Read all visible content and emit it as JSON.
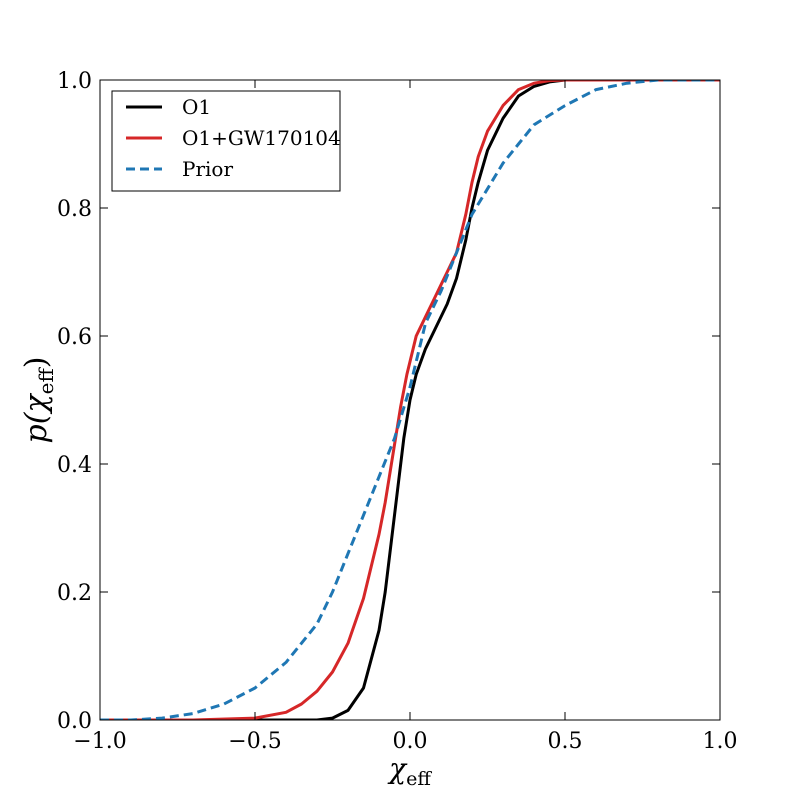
{
  "chart_data": {
    "type": "line",
    "xlabel_symbol": "χ",
    "xlabel_sub": "eff",
    "ylabel_prefix": "p(",
    "ylabel_symbol": "χ",
    "ylabel_sub": "eff",
    "ylabel_suffix": ")",
    "xlim": [
      -1.0,
      1.0
    ],
    "ylim": [
      0.0,
      1.0
    ],
    "xticks": [
      -1.0,
      -0.5,
      0.0,
      0.5,
      1.0
    ],
    "xtick_labels": [
      "−1.0",
      "−0.5",
      "0.0",
      "0.5",
      "1.0"
    ],
    "yticks": [
      0.0,
      0.2,
      0.4,
      0.6,
      0.8,
      1.0
    ],
    "ytick_labels": [
      "0.0",
      "0.2",
      "0.4",
      "0.6",
      "0.8",
      "1.0"
    ],
    "grid": false,
    "legend_position": "top-left",
    "series": [
      {
        "name": "O1",
        "color": "#000000",
        "dash": "solid",
        "x": [
          -1.0,
          -0.3,
          -0.25,
          -0.2,
          -0.15,
          -0.1,
          -0.08,
          -0.06,
          -0.04,
          -0.02,
          0.0,
          0.02,
          0.05,
          0.08,
          0.12,
          0.15,
          0.18,
          0.2,
          0.22,
          0.25,
          0.3,
          0.35,
          0.4,
          0.45,
          0.5,
          0.55,
          0.6,
          1.0
        ],
        "y": [
          0.0,
          0.0,
          0.003,
          0.015,
          0.05,
          0.14,
          0.2,
          0.28,
          0.36,
          0.44,
          0.5,
          0.54,
          0.58,
          0.61,
          0.65,
          0.69,
          0.75,
          0.8,
          0.84,
          0.89,
          0.94,
          0.975,
          0.99,
          0.997,
          1.0,
          1.0,
          1.0,
          1.0
        ]
      },
      {
        "name": "O1+GW170104",
        "color": "#d62728",
        "dash": "solid",
        "x": [
          -1.0,
          -0.7,
          -0.5,
          -0.4,
          -0.35,
          -0.3,
          -0.25,
          -0.2,
          -0.15,
          -0.1,
          -0.08,
          -0.05,
          -0.03,
          -0.01,
          0.0,
          0.02,
          0.05,
          0.08,
          0.1,
          0.12,
          0.15,
          0.18,
          0.2,
          0.22,
          0.25,
          0.3,
          0.35,
          0.4,
          0.45,
          0.5,
          0.55,
          1.0
        ],
        "y": [
          0.0,
          0.0,
          0.003,
          0.012,
          0.025,
          0.045,
          0.075,
          0.12,
          0.19,
          0.29,
          0.34,
          0.43,
          0.49,
          0.54,
          0.56,
          0.6,
          0.63,
          0.66,
          0.68,
          0.7,
          0.73,
          0.79,
          0.84,
          0.88,
          0.92,
          0.96,
          0.985,
          0.995,
          0.999,
          1.0,
          1.0,
          1.0
        ]
      },
      {
        "name": "Prior",
        "color": "#1f77b4",
        "dash": "dashed",
        "x": [
          -1.0,
          -0.9,
          -0.8,
          -0.7,
          -0.6,
          -0.5,
          -0.4,
          -0.3,
          -0.25,
          -0.2,
          -0.15,
          -0.1,
          -0.05,
          0.0,
          0.05,
          0.1,
          0.15,
          0.2,
          0.25,
          0.3,
          0.35,
          0.4,
          0.5,
          0.6,
          0.7,
          0.8,
          0.9,
          1.0
        ],
        "y": [
          0.0,
          0.0,
          0.003,
          0.01,
          0.025,
          0.05,
          0.09,
          0.15,
          0.2,
          0.26,
          0.32,
          0.38,
          0.44,
          0.52,
          0.62,
          0.67,
          0.73,
          0.79,
          0.83,
          0.87,
          0.9,
          0.93,
          0.96,
          0.985,
          0.995,
          1.0,
          1.0,
          1.0
        ]
      }
    ]
  }
}
